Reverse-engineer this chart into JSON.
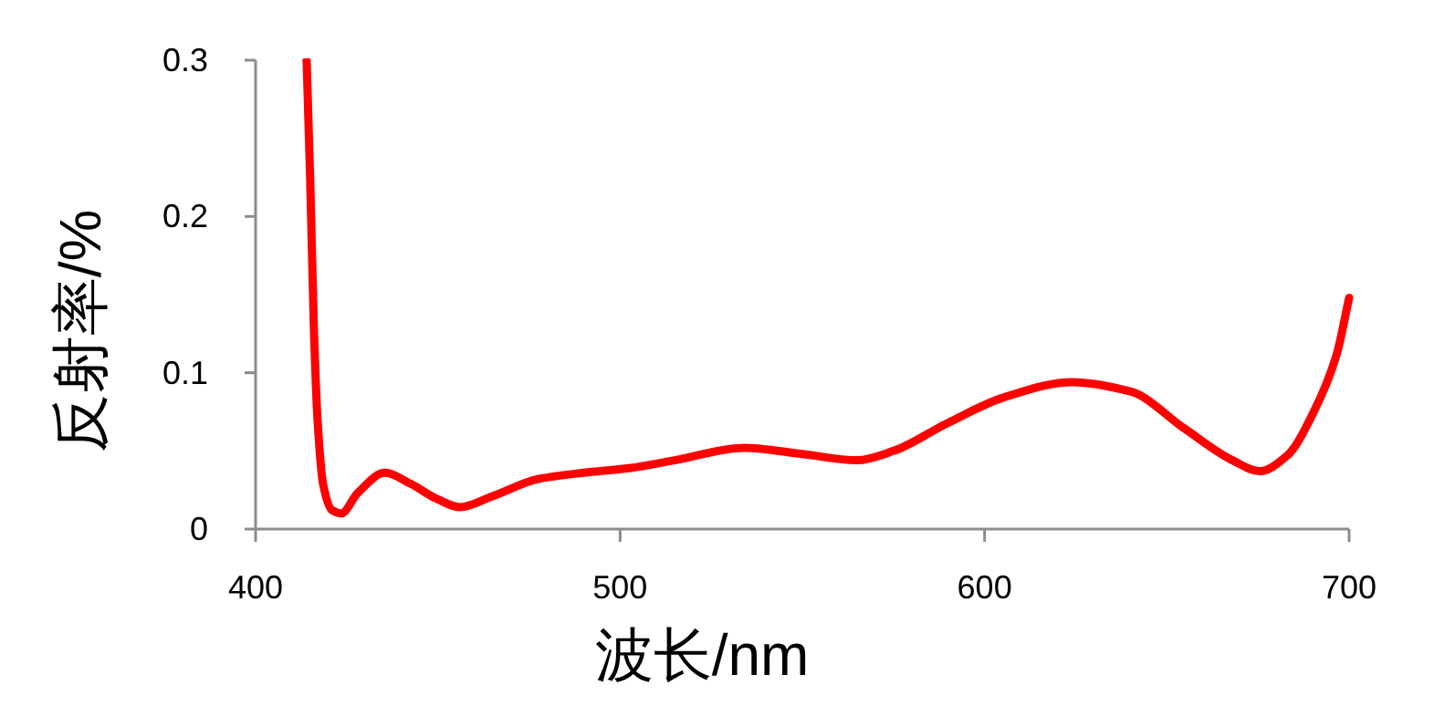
{
  "chart_data": {
    "type": "line",
    "xlabel": "波长/nm",
    "ylabel": "反射率/%",
    "x": [
      414,
      415,
      416,
      417,
      418.5,
      421,
      423.5,
      428,
      435.5,
      442.5,
      450,
      456,
      465,
      477.5,
      490,
      502.5,
      515,
      534,
      550,
      565,
      575,
      590,
      605,
      624,
      640,
      655,
      668,
      675.5,
      683,
      690.5,
      696.5,
      700
    ],
    "series": [
      {
        "color": "#ff0000",
        "values": [
          0.3,
          0.222,
          0.128,
          0.07,
          0.029,
          0.012,
          0.01,
          0.023,
          0.036,
          0.029,
          0.019,
          0.014,
          0.021,
          0.032,
          0.036,
          0.039,
          0.044,
          0.052,
          0.048,
          0.044,
          0.05,
          0.068,
          0.084,
          0.094,
          0.088,
          0.064,
          0.044,
          0.037,
          0.047,
          0.076,
          0.111,
          0.148
        ]
      }
    ],
    "xlim": [
      400,
      700
    ],
    "ylim": [
      0,
      0.3
    ],
    "xticks": [
      400,
      500,
      600,
      700
    ],
    "yticks": [
      0,
      0.1,
      0.2,
      0.3
    ],
    "line_style": "solid"
  }
}
